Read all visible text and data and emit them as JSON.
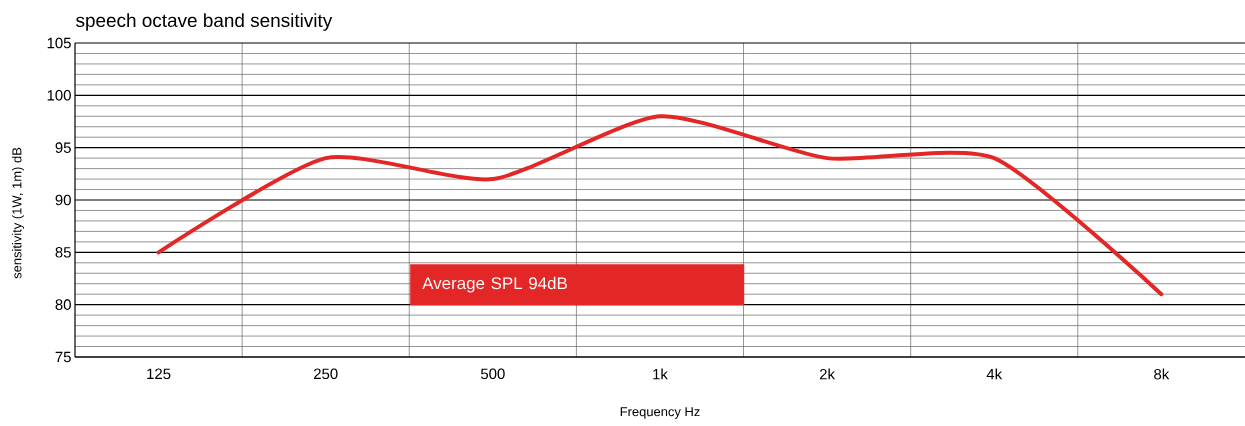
{
  "chart_data": {
    "type": "line",
    "title": "speech octave band sensitivity",
    "xlabel": "Frequency Hz",
    "ylabel": "sensitivity (1W, 1m) dB",
    "categories": [
      "125",
      "250",
      "500",
      "1k",
      "2k",
      "4k",
      "8k"
    ],
    "series": [
      {
        "color": "#e32726",
        "values": [
          85,
          94,
          92,
          98,
          94,
          94,
          81
        ]
      }
    ],
    "ylim": [
      75,
      105
    ],
    "yticks": [
      75,
      80,
      85,
      90,
      95,
      100,
      105
    ],
    "grid": true,
    "marker": "none",
    "line_style": "solid",
    "annotations": [
      "Average SPL 94dB"
    ]
  }
}
